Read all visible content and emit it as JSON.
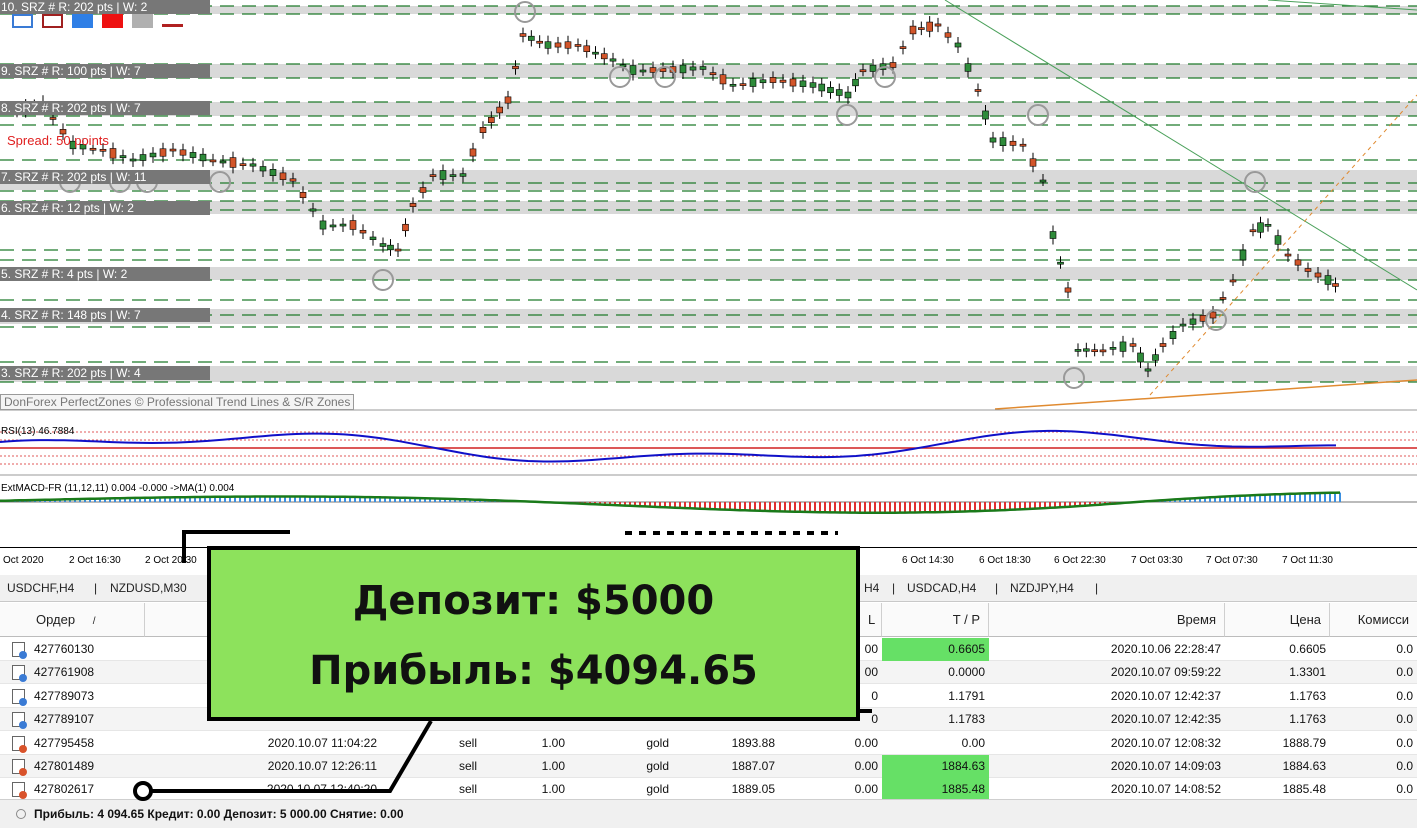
{
  "zones": [
    {
      "label": "10. SRZ # R: 202 pts | W: 2"
    },
    {
      "label": "9. SRZ # R: 100 pts | W: 7"
    },
    {
      "label": "8. SRZ # R: 202 pts | W: 7"
    },
    {
      "label": "7. SRZ # R: 202 pts | W: 11"
    },
    {
      "label": "6. SRZ # R: 12 pts | W: 2"
    },
    {
      "label": "5. SRZ # R: 4 pts | W: 2"
    },
    {
      "label": "4. SRZ # R: 148 pts | W: 7"
    },
    {
      "label": "3. SRZ # R: 202 pts | W: 4"
    }
  ],
  "spread_label": "Spread: 50 points",
  "watermark": "DonForex PerfectZones © Professional Trend Lines & S/R Zones",
  "rsi_label": "RSI(13) 46.7884",
  "macd_label": "ExtMACD-FR (11,12,11) 0.004 -0.000 ->MA(1) 0.004",
  "colors": {
    "bull": "#2e8b3a",
    "bear": "#d2552a",
    "zone": "#d9d9d9",
    "grid_dash": "#1f7a2a",
    "rsi": "#1010c8",
    "macd_pos": "#3b8fe0",
    "macd_neg": "#e03030",
    "macd_line": "#1a7a1a",
    "overlay_bg": "#8de25c",
    "tp_green": "#66e066"
  },
  "time_axis": [
    "Oct 2020",
    "2 Oct 16:30",
    "2 Oct 20:30",
    "6 Oct 14:30",
    "6 Oct 18:30",
    "6 Oct 22:30",
    "7 Oct 03:30",
    "7 Oct 07:30",
    "7 Oct 11:30"
  ],
  "tabs": [
    "USDCHF,H4",
    "NZDUSD,M30",
    "H4",
    "USDCAD,H4",
    "NZDJPY,H4"
  ],
  "table": {
    "headers": [
      "Ордер",
      "/",
      "L",
      "T / P",
      "Время",
      "Цена",
      "Комисси"
    ],
    "rows": [
      {
        "order": "427760130",
        "time": "",
        "type": "",
        "volume": "",
        "symbol": "",
        "price": "",
        "sl": "00",
        "tp": "0.6605",
        "tp_green": true,
        "close_time": "2020.10.06 22:28:47",
        "close_price": "0.6605",
        "comm": "0.0",
        "kind": "buy"
      },
      {
        "order": "427761908",
        "time": "",
        "type": "",
        "volume": "",
        "symbol": "",
        "price": "",
        "sl": "00",
        "tp": "0.0000",
        "tp_green": false,
        "close_time": "2020.10.07 09:59:22",
        "close_price": "1.3301",
        "comm": "0.0",
        "kind": "buy"
      },
      {
        "order": "427789073",
        "time": "",
        "type": "",
        "volume": "",
        "symbol": "",
        "price": "",
        "sl": "0",
        "tp": "1.1791",
        "tp_green": false,
        "close_time": "2020.10.07 12:42:37",
        "close_price": "1.1763",
        "comm": "0.0",
        "kind": "buy"
      },
      {
        "order": "427789107",
        "time": "",
        "type": "",
        "volume": "",
        "symbol": "",
        "price": "",
        "sl": "0",
        "tp": "1.1783",
        "tp_green": false,
        "close_time": "2020.10.07 12:42:35",
        "close_price": "1.1763",
        "comm": "0.0",
        "kind": "buy"
      },
      {
        "order": "427795458",
        "time": "2020.10.07 11:04:22",
        "type": "sell",
        "volume": "1.00",
        "symbol": "gold",
        "price": "1893.88",
        "sl": "0.00",
        "tp": "0.00",
        "tp_green": false,
        "close_time": "2020.10.07 12:08:32",
        "close_price": "1888.79",
        "comm": "0.0",
        "kind": "sell"
      },
      {
        "order": "427801489",
        "time": "2020.10.07 12:26:11",
        "type": "sell",
        "volume": "1.00",
        "symbol": "gold",
        "price": "1887.07",
        "sl": "0.00",
        "tp": "1884.63",
        "tp_green": true,
        "close_time": "2020.10.07 14:09:03",
        "close_price": "1884.63",
        "comm": "0.0",
        "kind": "sell"
      },
      {
        "order": "427802617",
        "time": "2020.10.07 12:40:20",
        "type": "sell",
        "volume": "1.00",
        "symbol": "gold",
        "price": "1889.05",
        "sl": "0.00",
        "tp": "1885.48",
        "tp_green": true,
        "close_time": "2020.10.07 14:08:52",
        "close_price": "1885.48",
        "comm": "0.0",
        "kind": "sell"
      }
    ]
  },
  "status_bar": "Прибыль: 4 094.65  Кредит: 0.00  Депозит: 5 000.00  Снятие: 0.00",
  "overlay": {
    "line1": "Депозит: $5000",
    "line2": "Прибыль: $4094.65"
  }
}
